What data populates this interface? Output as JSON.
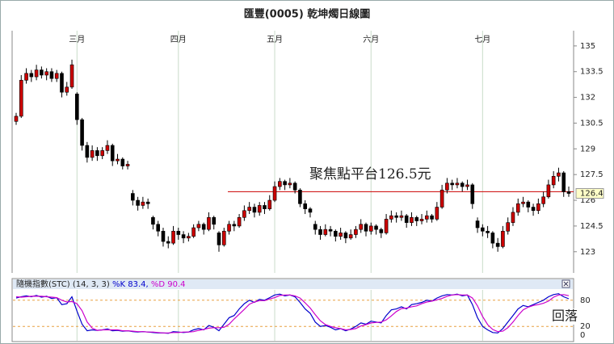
{
  "chart_data": [
    {
      "type": "candlestick",
      "title": "匯豐(0005) 乾坤燭日線圖",
      "categories": [
        null,
        null,
        null,
        null,
        null,
        null,
        null,
        null,
        null,
        null,
        null,
        null,
        "三月",
        null,
        null,
        null,
        null,
        null,
        null,
        null,
        null,
        null,
        null,
        null,
        null,
        null,
        null,
        null,
        null,
        null,
        null,
        null,
        "四月",
        null,
        null,
        null,
        null,
        null,
        null,
        null,
        null,
        null,
        null,
        null,
        null,
        null,
        null,
        null,
        null,
        null,
        null,
        "五月",
        null,
        null,
        null,
        null,
        null,
        null,
        null,
        null,
        null,
        null,
        null,
        null,
        null,
        null,
        null,
        null,
        null,
        null,
        "六月",
        null,
        null,
        null,
        null,
        null,
        null,
        null,
        null,
        null,
        null,
        null,
        null,
        null,
        null,
        null,
        null,
        null,
        null,
        null,
        null,
        null,
        "七月",
        null,
        null,
        null,
        null,
        null,
        null,
        null,
        null,
        null,
        null,
        null,
        null,
        null,
        null,
        null,
        null,
        null
      ],
      "ohlc": [
        [
          130.6,
          131.1,
          130.4,
          130.9
        ],
        [
          130.9,
          133.3,
          130.8,
          133.0
        ],
        [
          133.0,
          133.7,
          132.8,
          133.4
        ],
        [
          133.4,
          133.6,
          132.9,
          133.2
        ],
        [
          133.2,
          133.9,
          133.0,
          133.6
        ],
        [
          133.6,
          133.8,
          133.1,
          133.3
        ],
        [
          133.3,
          133.7,
          133.0,
          133.5
        ],
        [
          133.5,
          133.7,
          132.9,
          133.1
        ],
        [
          133.1,
          133.6,
          132.9,
          133.4
        ],
        [
          133.4,
          133.5,
          132.0,
          132.3
        ],
        [
          132.3,
          132.9,
          132.1,
          132.6
        ],
        [
          132.6,
          134.2,
          132.5,
          133.9
        ],
        [
          132.2,
          132.3,
          130.4,
          130.7
        ],
        [
          130.7,
          130.8,
          128.9,
          129.2
        ],
        [
          129.2,
          129.4,
          128.2,
          128.5
        ],
        [
          128.5,
          129.2,
          128.3,
          128.9
        ],
        [
          128.9,
          129.1,
          128.3,
          128.6
        ],
        [
          128.6,
          129.1,
          128.4,
          128.9
        ],
        [
          128.9,
          129.5,
          128.7,
          129.2
        ],
        [
          129.2,
          129.3,
          128.0,
          128.3
        ],
        [
          128.3,
          128.7,
          128.1,
          128.4
        ],
        [
          128.4,
          128.5,
          127.8,
          128.0
        ],
        [
          128.0,
          128.3,
          127.8,
          128.1
        ],
        [
          126.4,
          126.6,
          125.7,
          126.0
        ],
        [
          126.0,
          126.2,
          125.4,
          125.7
        ],
        [
          125.7,
          126.2,
          125.5,
          125.9
        ],
        [
          125.9,
          126.1,
          125.5,
          125.8
        ],
        [
          125.0,
          125.1,
          124.3,
          124.6
        ],
        [
          124.6,
          124.8,
          123.9,
          124.2
        ],
        [
          124.2,
          124.4,
          123.3,
          123.6
        ],
        [
          123.6,
          123.9,
          123.2,
          123.5
        ],
        [
          123.5,
          124.5,
          123.4,
          124.2
        ],
        [
          124.2,
          124.4,
          123.7,
          124.0
        ],
        [
          124.0,
          124.2,
          123.5,
          123.8
        ],
        [
          123.8,
          124.1,
          123.6,
          123.9
        ],
        [
          123.9,
          124.6,
          123.8,
          124.4
        ],
        [
          124.4,
          124.8,
          124.2,
          124.6
        ],
        [
          124.6,
          124.7,
          124.0,
          124.3
        ],
        [
          124.3,
          125.3,
          124.2,
          125.0
        ],
        [
          125.0,
          125.1,
          124.3,
          124.6
        ],
        [
          124.1,
          124.2,
          123.0,
          123.4
        ],
        [
          123.4,
          124.4,
          123.3,
          124.2
        ],
        [
          124.2,
          124.8,
          124.0,
          124.6
        ],
        [
          124.6,
          124.8,
          124.2,
          124.5
        ],
        [
          124.5,
          125.2,
          124.4,
          125.0
        ],
        [
          125.0,
          125.7,
          124.8,
          125.4
        ],
        [
          125.4,
          125.9,
          125.2,
          125.6
        ],
        [
          125.6,
          125.8,
          125.0,
          125.3
        ],
        [
          125.3,
          125.9,
          125.1,
          125.7
        ],
        [
          125.7,
          125.9,
          125.2,
          125.5
        ],
        [
          125.5,
          126.3,
          125.4,
          126.0
        ],
        [
          126.0,
          127.1,
          125.9,
          126.8
        ],
        [
          126.8,
          127.3,
          126.6,
          127.1
        ],
        [
          127.1,
          127.2,
          126.6,
          126.9
        ],
        [
          126.9,
          127.3,
          126.7,
          127.0
        ],
        [
          127.0,
          127.1,
          126.4,
          126.6
        ],
        [
          126.6,
          126.7,
          125.6,
          125.8
        ],
        [
          125.8,
          126.0,
          125.2,
          125.5
        ],
        [
          125.5,
          125.6,
          125.0,
          125.3
        ],
        [
          124.6,
          124.8,
          124.0,
          124.3
        ],
        [
          124.3,
          124.5,
          123.7,
          124.0
        ],
        [
          124.0,
          124.6,
          123.9,
          124.3
        ],
        [
          124.3,
          124.5,
          123.9,
          124.2
        ],
        [
          124.2,
          124.3,
          123.6,
          123.9
        ],
        [
          123.9,
          124.4,
          123.7,
          124.1
        ],
        [
          124.1,
          124.2,
          123.5,
          123.8
        ],
        [
          123.8,
          124.3,
          123.7,
          124.0
        ],
        [
          124.0,
          124.5,
          123.8,
          124.3
        ],
        [
          124.3,
          124.9,
          124.1,
          124.6
        ],
        [
          124.6,
          124.7,
          123.9,
          124.2
        ],
        [
          124.2,
          124.7,
          124.0,
          124.5
        ],
        [
          124.5,
          124.6,
          124.0,
          124.3
        ],
        [
          124.3,
          124.4,
          123.8,
          124.1
        ],
        [
          124.1,
          125.2,
          124.0,
          124.9
        ],
        [
          124.9,
          125.4,
          124.7,
          125.1
        ],
        [
          125.1,
          125.3,
          124.7,
          125.0
        ],
        [
          125.0,
          125.4,
          124.8,
          125.1
        ],
        [
          125.1,
          125.2,
          124.4,
          124.7
        ],
        [
          124.7,
          125.3,
          124.5,
          125.0
        ],
        [
          125.0,
          125.1,
          124.5,
          124.8
        ],
        [
          124.8,
          125.2,
          124.6,
          124.9
        ],
        [
          124.9,
          125.4,
          124.7,
          125.1
        ],
        [
          125.1,
          125.2,
          124.7,
          124.9
        ],
        [
          124.9,
          125.9,
          124.8,
          125.6
        ],
        [
          125.6,
          126.9,
          125.5,
          126.6
        ],
        [
          126.6,
          127.3,
          126.4,
          127.0
        ],
        [
          127.0,
          127.2,
          126.6,
          126.9
        ],
        [
          126.9,
          127.3,
          126.7,
          127.0
        ],
        [
          127.0,
          127.1,
          126.5,
          126.8
        ],
        [
          126.8,
          127.2,
          126.6,
          126.9
        ],
        [
          126.9,
          127.0,
          125.5,
          125.8
        ],
        [
          124.8,
          125.0,
          124.1,
          124.4
        ],
        [
          124.4,
          124.6,
          123.9,
          124.2
        ],
        [
          124.2,
          124.5,
          123.8,
          124.1
        ],
        [
          124.1,
          124.2,
          123.2,
          123.5
        ],
        [
          123.5,
          123.8,
          123.0,
          123.3
        ],
        [
          123.3,
          124.5,
          123.2,
          124.2
        ],
        [
          124.2,
          125.0,
          124.0,
          124.7
        ],
        [
          124.7,
          125.6,
          124.5,
          125.3
        ],
        [
          125.3,
          126.1,
          125.1,
          125.8
        ],
        [
          125.8,
          126.2,
          125.6,
          125.9
        ],
        [
          125.9,
          126.0,
          125.3,
          125.6
        ],
        [
          125.6,
          125.8,
          125.1,
          125.4
        ],
        [
          125.4,
          126.1,
          125.2,
          125.8
        ],
        [
          125.8,
          126.5,
          125.6,
          126.2
        ],
        [
          126.2,
          127.2,
          126.1,
          126.9
        ],
        [
          126.9,
          127.7,
          126.7,
          127.4
        ],
        [
          127.4,
          127.9,
          127.1,
          127.6
        ],
        [
          127.6,
          127.7,
          126.2,
          126.5
        ],
        [
          126.5,
          126.8,
          126.2,
          126.4
        ]
      ],
      "up_color": "#cc0000",
      "down_color": "#000000",
      "ylim": [
        122.0,
        135.7
      ],
      "yticks": [
        123,
        124.5,
        126,
        127.5,
        129,
        130.5,
        132,
        133.5,
        135
      ],
      "grid": true,
      "grid_color": "#c9dcc9",
      "reference_line": {
        "value": 126.5,
        "label": "聚焦點平台126.5元",
        "color": "#cc0000"
      },
      "last_price": 126.4
    },
    {
      "type": "line",
      "title": "隨機指數(STC) (14, 3, 3)",
      "series": [
        {
          "name": "%K 83.4,",
          "color": "#0000cc",
          "values": [
            85,
            88,
            90,
            88,
            91,
            87,
            89,
            84,
            86,
            70,
            72,
            88,
            55,
            25,
            10,
            12,
            11,
            12,
            14,
            10,
            11,
            9,
            10,
            8,
            7,
            8,
            7,
            6,
            5,
            5,
            4,
            8,
            7,
            6,
            7,
            12,
            15,
            12,
            22,
            18,
            10,
            25,
            40,
            45,
            60,
            72,
            80,
            75,
            82,
            80,
            86,
            92,
            94,
            90,
            92,
            88,
            75,
            60,
            50,
            30,
            20,
            22,
            18,
            12,
            15,
            10,
            14,
            20,
            28,
            25,
            32,
            30,
            28,
            45,
            58,
            60,
            65,
            60,
            70,
            72,
            75,
            80,
            78,
            85,
            90,
            93,
            92,
            94,
            90,
            92,
            70,
            40,
            20,
            12,
            6,
            5,
            15,
            30,
            45,
            60,
            68,
            65,
            70,
            75,
            80,
            88,
            93,
            95,
            88,
            83.4
          ]
        },
        {
          "name": "%D 90.4",
          "color": "#cc00cc",
          "values": [
            88,
            87,
            88,
            89,
            89,
            89,
            88,
            87,
            86,
            80,
            76,
            77,
            72,
            56,
            30,
            16,
            11,
            12,
            12,
            12,
            12,
            10,
            10,
            9,
            8,
            8,
            7,
            7,
            6,
            5,
            5,
            6,
            6,
            7,
            7,
            8,
            11,
            13,
            16,
            17,
            17,
            18,
            25,
            37,
            48,
            59,
            71,
            76,
            79,
            79,
            83,
            86,
            91,
            92,
            92,
            90,
            85,
            74,
            62,
            47,
            33,
            24,
            20,
            17,
            15,
            12,
            13,
            15,
            21,
            24,
            28,
            29,
            30,
            35,
            44,
            54,
            61,
            62,
            65,
            67,
            72,
            76,
            78,
            81,
            84,
            89,
            92,
            93,
            92,
            92,
            85,
            67,
            43,
            24,
            13,
            8,
            9,
            17,
            30,
            45,
            58,
            64,
            68,
            70,
            73,
            78,
            87,
            92,
            93,
            90.4
          ]
        }
      ],
      "ylim": [
        0,
        100
      ],
      "yticks": [
        0,
        20,
        80
      ],
      "guide_color": "#e8a040",
      "annotation": {
        "text": "回落",
        "color": "#cc0000"
      }
    }
  ]
}
